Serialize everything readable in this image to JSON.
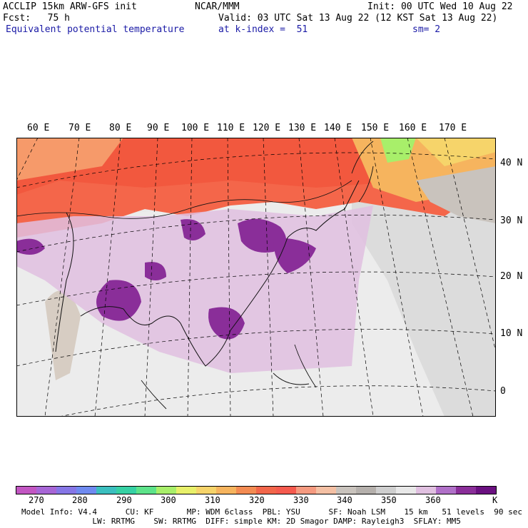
{
  "header": {
    "title": "ACCLIP 15km ARW-GFS init",
    "fcst": "Fcst:   75 h",
    "field": "Equivalent potential temperature",
    "center": "NCAR/MMM",
    "init": "Init: 00 UTC Wed 10 Aug 22",
    "valid": "Valid: 03 UTC Sat 13 Aug 22 (12 KST Sat 13 Aug 22)",
    "level": "at k-index =  51",
    "smooth": "sm= 2"
  },
  "map": {
    "lon_labels": [
      "60 E",
      "70 E",
      "80 E",
      "90 E",
      "100 E",
      "110 E",
      "120 E",
      "130 E",
      "140 E",
      "150 E",
      "160 E",
      "170 E"
    ],
    "lat_labels": [
      "40 N",
      "30 N",
      "20 N",
      "10 N",
      "0"
    ]
  },
  "colorbar": {
    "colors": [
      "#c256c2",
      "#a766d6",
      "#8676e6",
      "#6f8af0",
      "#3bbfbf",
      "#36d1a4",
      "#5de38a",
      "#a8ef6a",
      "#e8f06a",
      "#f6d46a",
      "#f6b45e",
      "#f38b52",
      "#f2664a",
      "#f55a4e",
      "#f59a80",
      "#f4c0a4",
      "#c9c3bd",
      "#b5b0ac",
      "#cfcfcf",
      "#e8e8e8",
      "#e0c0e0",
      "#b070c8",
      "#8a2e99",
      "#6a1080"
    ],
    "ticks": [
      "270",
      "280",
      "290",
      "300",
      "310",
      "320",
      "330",
      "340",
      "350",
      "360",
      "K"
    ]
  },
  "footer": {
    "line1": "Model Info: V4.4      CU: KF       MP: WDM 6class  PBL: YSU      SF: Noah LSM    15 km   51 levels  90 sec",
    "line2": "               LW: RRTMG    SW: RRTMG  DIFF: simple KM: 2D Smagor DAMP: Rayleigh3  SFLAY: MM5"
  }
}
